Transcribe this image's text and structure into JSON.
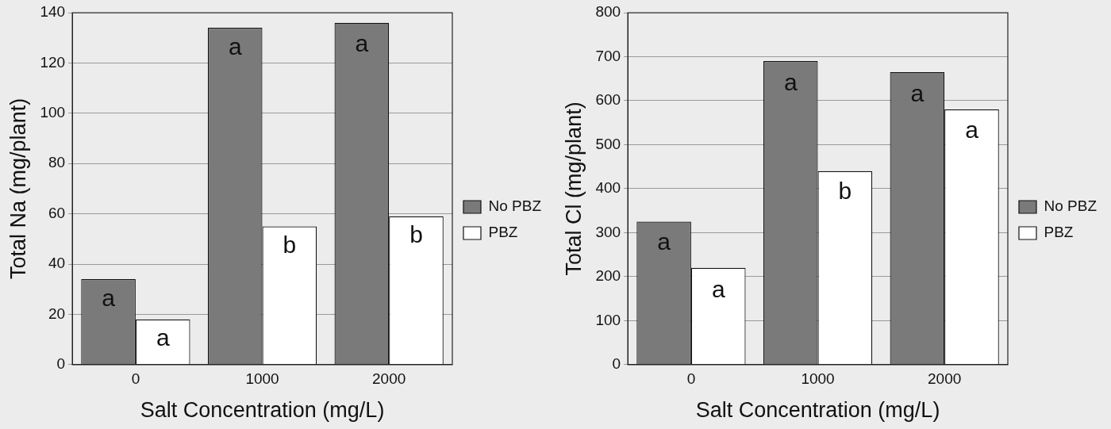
{
  "chart_data": [
    {
      "type": "bar",
      "xlabel": "Salt Concentration (mg/L)",
      "ylabel": "Total Na (mg/plant)",
      "categories": [
        "0",
        "1000",
        "2000"
      ],
      "series": [
        {
          "name": "No PBZ",
          "color": "#7a7a7a",
          "values": [
            34,
            134,
            136
          ]
        },
        {
          "name": "PBZ",
          "color": "#ffffff",
          "values": [
            18,
            55,
            59
          ]
        }
      ],
      "ylim": [
        0,
        140
      ],
      "yticks": [
        0,
        20,
        40,
        60,
        80,
        100,
        120,
        140
      ],
      "grid": "y",
      "legend": "right",
      "annotations": [
        {
          "text": "a",
          "x": "0",
          "y": 26
        },
        {
          "text": "a",
          "x": "0",
          "y": 10
        },
        {
          "text": "a",
          "x": "1000",
          "y": 126
        },
        {
          "text": "b",
          "x": "1000",
          "y": 47
        },
        {
          "text": "a",
          "x": "2000",
          "y": 127
        },
        {
          "text": "b",
          "x": "2000",
          "y": 51
        }
      ]
    },
    {
      "type": "bar",
      "xlabel": "Salt Concentration (mg/L)",
      "ylabel": "Total Cl (mg/plant)",
      "categories": [
        "0",
        "1000",
        "2000"
      ],
      "series": [
        {
          "name": "No PBZ",
          "color": "#7a7a7a",
          "values": [
            325,
            690,
            665
          ]
        },
        {
          "name": "PBZ",
          "color": "#ffffff",
          "values": [
            220,
            440,
            580
          ]
        }
      ],
      "ylim": [
        0,
        800
      ],
      "yticks": [
        0,
        100,
        200,
        300,
        400,
        500,
        600,
        700,
        800
      ],
      "grid": "y",
      "legend": "right",
      "annotations": [
        {
          "text": "a",
          "x": "0",
          "y": 276
        },
        {
          "text": "a",
          "x": "0",
          "y": 167
        },
        {
          "text": "a",
          "x": "1000",
          "y": 639
        },
        {
          "text": "b",
          "x": "1000",
          "y": 392
        },
        {
          "text": "a",
          "x": "2000",
          "y": 613
        },
        {
          "text": "a",
          "x": "2000",
          "y": 530
        }
      ]
    }
  ]
}
